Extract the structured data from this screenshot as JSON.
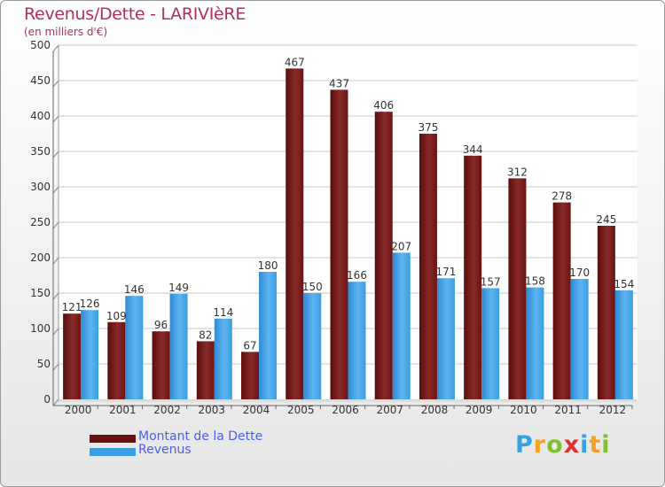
{
  "title": "Revenus/Dette - LARIVIèRE",
  "subtitle": "(en milliers d'€)",
  "logo": {
    "text": "Proxiti",
    "letters": [
      "P",
      "r",
      "o",
      "x",
      "i",
      "t",
      "i"
    ],
    "colors": [
      "#3aa0e0",
      "#f5a020",
      "#80c030",
      "#e03030",
      "#3aa0e0",
      "#f5a020",
      "#80c030"
    ]
  },
  "chart_data": {
    "type": "bar",
    "title": "Revenus/Dette - LARIVIèRE",
    "ylabel": "(en milliers d'€)",
    "categories": [
      "2000",
      "2001",
      "2002",
      "2003",
      "2004",
      "2005",
      "2006",
      "2007",
      "2008",
      "2009",
      "2010",
      "2011",
      "2012"
    ],
    "ylim": [
      0,
      500
    ],
    "yticks": [
      0,
      50,
      100,
      150,
      200,
      250,
      300,
      350,
      400,
      450,
      500
    ],
    "grid": true,
    "legend_position": "bottom-left",
    "series": [
      {
        "name": "Montant de la Dette",
        "color": "#7a1c1c",
        "values": [
          121,
          109,
          96,
          82,
          67,
          467,
          437,
          406,
          375,
          344,
          312,
          278,
          245
        ]
      },
      {
        "name": "Revenus",
        "color": "#3a9ee0",
        "values": [
          126,
          146,
          149,
          114,
          180,
          150,
          166,
          207,
          171,
          157,
          158,
          170,
          154
        ]
      }
    ]
  }
}
